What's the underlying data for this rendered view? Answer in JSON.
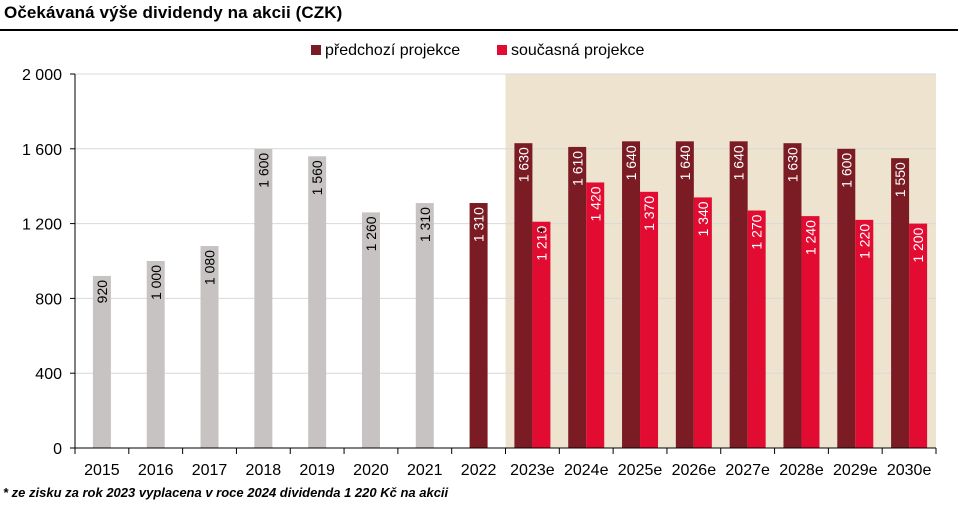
{
  "header": {
    "title": "Očekávaná výše dividendy na akcii (CZK)"
  },
  "footnote": "* ze zisku za rok 2023 vyplacena v roce 2024 dividenda 1 220 Kč na akcii",
  "colors": {
    "historical": "#c8c3c3",
    "previous_projection": "#7b1c25",
    "current_projection": "#e20b32",
    "forecast_band": "#ede3cf",
    "grid": "#d9d9d9",
    "axis": "#000000"
  },
  "chart_data": {
    "type": "bar",
    "title": "Očekávaná výše dividendy na akcii (CZK)",
    "xlabel": "",
    "ylabel": "",
    "ylim": [
      0,
      2000
    ],
    "yticks": [
      0,
      400,
      800,
      1200,
      1600,
      2000
    ],
    "ytick_labels": [
      "0",
      "400",
      "800",
      "1 200",
      "1 600",
      "2 000"
    ],
    "grid": true,
    "legend_position": "top",
    "categories": [
      "2015",
      "2016",
      "2017",
      "2018",
      "2019",
      "2020",
      "2021",
      "2022",
      "2023e",
      "2024e",
      "2025e",
      "2026e",
      "2027e",
      "2028e",
      "2029e",
      "2030e"
    ],
    "historical": {
      "values": [
        920,
        1000,
        1080,
        1600,
        1560,
        1260,
        1310,
        null,
        null,
        null,
        null,
        null,
        null,
        null,
        null,
        null
      ],
      "labels": [
        "920",
        "1 000",
        "1 080",
        "1 600",
        "1 560",
        "1 260",
        "1 310",
        "",
        "",
        "",
        "",
        "",
        "",
        "",
        "",
        ""
      ]
    },
    "series": [
      {
        "name": "předchozí projekce",
        "values": [
          null,
          null,
          null,
          null,
          null,
          null,
          null,
          1310,
          1630,
          1610,
          1640,
          1640,
          1640,
          1630,
          1600,
          1550
        ],
        "labels": [
          "",
          "",
          "",
          "",
          "",
          "",
          "",
          "1 310",
          "1 630",
          "1 610",
          "1 640",
          "1 640",
          "1 640",
          "1 630",
          "1 600",
          "1 550"
        ]
      },
      {
        "name": "současná projekce",
        "values": [
          null,
          null,
          null,
          null,
          null,
          null,
          null,
          null,
          1210,
          1420,
          1370,
          1340,
          1270,
          1240,
          1220,
          1200
        ],
        "labels": [
          "",
          "",
          "",
          "",
          "",
          "",
          "",
          "",
          "1 210",
          "1 420",
          "1 370",
          "1 340",
          "1 270",
          "1 240",
          "1 220",
          "1 200"
        ]
      }
    ],
    "annotations": [
      {
        "category": "2023e",
        "text": "*"
      }
    ],
    "forecast_band_from": "2023e"
  }
}
